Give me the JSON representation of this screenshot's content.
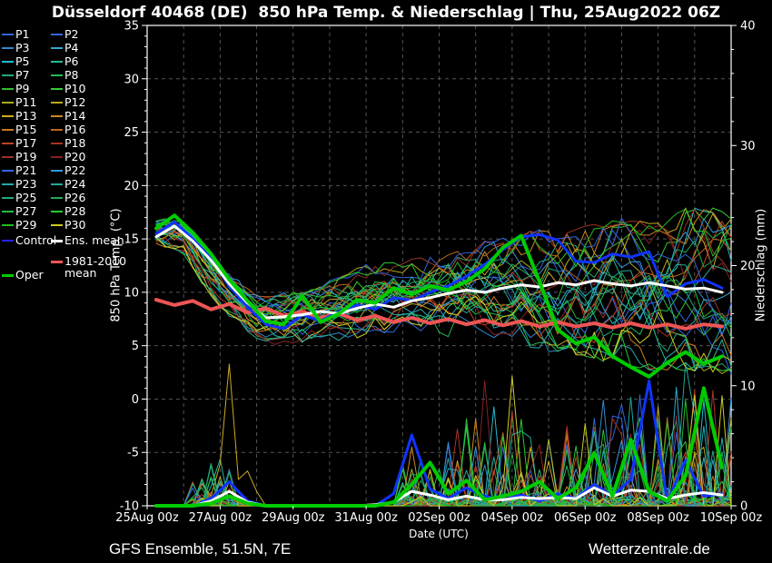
{
  "title": "Düsseldorf 40468 (DE)  850 hPa Temp. & Niederschlag | Thu, 25Aug2022 06Z",
  "footer_left": "GFS Ensemble, 51.5N, 7E",
  "footer_right": "Wetterzentrale.de",
  "axes": {
    "x": {
      "label": "Date (UTC)",
      "tick_labels": [
        "25Aug 00z",
        "27Aug 00z",
        "29Aug 00z",
        "31Aug 00z",
        "02Sep 00z",
        "04Sep 00z",
        "06Sep 00z",
        "08Sep 00z",
        "10Sep 00z"
      ],
      "tick_days": [
        0,
        2,
        4,
        6,
        8,
        10,
        12,
        14,
        16
      ],
      "range_days": [
        0,
        16
      ],
      "minor_step_days": 1
    },
    "y_left": {
      "label": "850 hPa Temp. (°C)",
      "ticks": [
        35,
        30,
        25,
        20,
        15,
        10,
        5,
        0,
        -5,
        -10
      ],
      "range": [
        -10,
        35
      ],
      "grid_step": 5,
      "minor_step": 1
    },
    "y_right": {
      "label": "Niederschlag (mm)",
      "ticks": [
        0,
        10,
        20,
        30,
        40
      ],
      "range": [
        0,
        40
      ],
      "minor_step": 2
    }
  },
  "legend": {
    "members": [
      {
        "label": "P1",
        "color": "#3366dd"
      },
      {
        "label": "P2",
        "color": "#3366dd"
      },
      {
        "label": "P3",
        "color": "#3388cc"
      },
      {
        "label": "P4",
        "color": "#33aacc"
      },
      {
        "label": "P5",
        "color": "#22bbcc"
      },
      {
        "label": "P6",
        "color": "#22bb99"
      },
      {
        "label": "P7",
        "color": "#22aa77"
      },
      {
        "label": "P8",
        "color": "#22bb55"
      },
      {
        "label": "P9",
        "color": "#33bb33"
      },
      {
        "label": "P10",
        "color": "#33cc33"
      },
      {
        "label": "P11",
        "color": "#aaaa22"
      },
      {
        "label": "P12",
        "color": "#bbaa22"
      },
      {
        "label": "P13",
        "color": "#ccaa22"
      },
      {
        "label": "P14",
        "color": "#cc8822"
      },
      {
        "label": "P15",
        "color": "#cc7722"
      },
      {
        "label": "P16",
        "color": "#bb6622"
      },
      {
        "label": "P17",
        "color": "#bb4422"
      },
      {
        "label": "P18",
        "color": "#aa3322"
      },
      {
        "label": "P19",
        "color": "#993322"
      },
      {
        "label": "P20",
        "color": "#882222"
      },
      {
        "label": "P21",
        "color": "#3366dd"
      },
      {
        "label": "P22",
        "color": "#3399dd"
      },
      {
        "label": "P23",
        "color": "#22aaaa"
      },
      {
        "label": "P24",
        "color": "#22aa99"
      },
      {
        "label": "P25",
        "color": "#22aa77"
      },
      {
        "label": "P26",
        "color": "#22aa55"
      },
      {
        "label": "P27",
        "color": "#22bb44"
      },
      {
        "label": "P28",
        "color": "#22cc33"
      },
      {
        "label": "P29",
        "color": "#22bb22"
      },
      {
        "label": "P30",
        "color": "#cccc22"
      }
    ],
    "specials": [
      {
        "label": "Control",
        "color": "#2222ff",
        "col": 1
      },
      {
        "label": "Ens. mean",
        "color": "#ffffff",
        "col": 2
      },
      {
        "label": "1981-2010 mean",
        "lines": [
          "1981-2010",
          "mean"
        ],
        "color": "#ff5555",
        "col": 2
      },
      {
        "label": "Oper",
        "color": "#00cc00",
        "col": 1
      }
    ]
  },
  "chart_data": {
    "type": "line",
    "title": "Düsseldorf 40468 (DE) 850 hPa Temp. & Niederschlag | Thu, 25Aug2022 06Z",
    "xlabel": "Date (UTC)",
    "ylabel_left": "850 hPa Temp. (°C)",
    "ylabel_right": "Niederschlag (mm)",
    "x_range_days": [
      0,
      16
    ],
    "ylim_left": [
      -10,
      35
    ],
    "ylim_right": [
      0,
      40
    ],
    "grid": true,
    "legend_position": "left",
    "x_days": [
      0.25,
      0.75,
      1.25,
      1.75,
      2.25,
      2.75,
      3.25,
      3.75,
      4.25,
      4.75,
      5.25,
      5.75,
      6.25,
      6.75,
      7.25,
      7.75,
      8.25,
      8.75,
      9.25,
      9.75,
      10.25,
      10.75,
      11.25,
      11.75,
      12.25,
      12.75,
      13.25,
      13.75,
      14.25,
      14.75,
      15.25,
      15.75
    ],
    "series": [
      {
        "name": "Ens. mean",
        "axis": "temp",
        "color": "#ffffff",
        "width": 3,
        "values": [
          15.2,
          16.2,
          14.8,
          13.0,
          10.8,
          9.0,
          7.6,
          7.7,
          7.9,
          8.2,
          8.0,
          8.5,
          8.9,
          8.6,
          9.2,
          9.5,
          9.9,
          10.2,
          10.0,
          10.4,
          10.7,
          10.5,
          10.9,
          10.7,
          11.1,
          10.8,
          10.6,
          10.9,
          10.6,
          10.3,
          10.4,
          10.0
        ]
      },
      {
        "name": "Control",
        "axis": "temp",
        "color": "#1133ff",
        "width": 3,
        "values": [
          15.5,
          16.6,
          15.0,
          13.2,
          10.6,
          8.6,
          7.0,
          6.6,
          7.9,
          7.3,
          8.2,
          8.8,
          8.4,
          9.5,
          9.2,
          10.0,
          10.6,
          11.5,
          12.6,
          14.0,
          15.2,
          15.4,
          14.9,
          12.9,
          12.8,
          13.6,
          13.3,
          13.8,
          9.6,
          10.8,
          11.2,
          10.4
        ]
      },
      {
        "name": "Oper",
        "axis": "temp",
        "color": "#00cc00",
        "width": 4,
        "values": [
          16.0,
          17.2,
          15.6,
          13.6,
          11.2,
          9.2,
          7.3,
          7.0,
          9.7,
          7.2,
          8.0,
          9.3,
          9.0,
          10.4,
          9.8,
          10.6,
          10.2,
          11.0,
          12.2,
          14.2,
          15.3,
          11.0,
          6.5,
          5.2,
          5.8,
          4.0,
          3.0,
          2.1,
          3.4,
          4.4,
          3.3,
          4.0
        ]
      },
      {
        "name": "1981-2010 mean",
        "axis": "temp",
        "color": "#ee5555",
        "width": 4,
        "values": [
          9.3,
          8.8,
          9.2,
          8.4,
          8.9,
          8.1,
          8.5,
          7.8,
          8.2,
          7.6,
          8.0,
          7.4,
          7.8,
          7.2,
          7.6,
          7.1,
          7.5,
          7.0,
          7.4,
          6.9,
          7.3,
          6.8,
          7.2,
          6.8,
          7.1,
          6.7,
          7.1,
          6.7,
          7.0,
          6.6,
          7.0,
          6.8
        ]
      },
      {
        "name": "Control precip",
        "axis": "precip",
        "color": "#1133ff",
        "width": 3,
        "values": [
          0,
          0,
          0,
          0.6,
          2.0,
          0.4,
          0,
          0,
          0,
          0,
          0,
          0,
          0,
          1.0,
          5.9,
          1.4,
          0.6,
          1.5,
          0.8,
          0.5,
          0.9,
          0.4,
          1.0,
          0.6,
          1.8,
          0.8,
          2.2,
          10.4,
          0.3,
          3.8,
          0.8,
          1.0
        ]
      },
      {
        "name": "Ens. mean precip",
        "axis": "precip",
        "color": "#ffffff",
        "width": 3,
        "values": [
          0,
          0,
          0,
          0.4,
          1.2,
          0.3,
          0,
          0,
          0,
          0,
          0,
          0,
          0.1,
          0.3,
          1.2,
          0.9,
          0.5,
          0.8,
          0.5,
          0.5,
          0.7,
          0.6,
          0.7,
          0.6,
          1.5,
          0.8,
          1.3,
          1.2,
          0.6,
          0.9,
          1.1,
          0.9
        ]
      },
      {
        "name": "Oper precip",
        "axis": "precip",
        "color": "#00cc00",
        "width": 4,
        "values": [
          0,
          0,
          0,
          0.2,
          0.8,
          0.2,
          0,
          0,
          0,
          0,
          0,
          0,
          0,
          0.3,
          1.8,
          3.6,
          1.0,
          2.1,
          0.5,
          0.8,
          1.2,
          2.0,
          0.6,
          1.5,
          4.4,
          0.8,
          5.5,
          1.2,
          0.4,
          2.5,
          9.8,
          3.2
        ]
      }
    ],
    "ensemble": {
      "count": 30,
      "seed": 42,
      "temp_envelope": {
        "x": [
          0,
          1,
          2,
          3,
          4,
          5,
          6,
          7,
          8,
          9,
          10,
          11,
          12,
          13,
          14,
          15,
          16
        ],
        "lower": [
          14.3,
          13.0,
          8.5,
          5.5,
          5.0,
          5.5,
          6.0,
          6.5,
          6.0,
          6.0,
          5.0,
          4.5,
          4.0,
          3.0,
          2.5,
          2.5,
          2.0
        ],
        "upper": [
          16.8,
          16.5,
          12.5,
          9.5,
          10.0,
          11.0,
          12.5,
          13.0,
          13.5,
          14.5,
          15.5,
          16.0,
          16.5,
          17.0,
          16.5,
          18.5,
          17.5
        ]
      },
      "precip_max": {
        "x": [
          0,
          1,
          2,
          3,
          4,
          5,
          6,
          7,
          8,
          9,
          10,
          11,
          12,
          13,
          14,
          15,
          16
        ],
        "values": [
          0,
          0,
          5,
          3,
          0,
          0,
          0,
          5,
          6,
          9,
          10,
          6,
          8,
          10,
          9,
          11,
          9
        ]
      },
      "wet_windows": [
        [
          1.2,
          2.7
        ],
        [
          6.8,
          16
        ]
      ],
      "featured_spikes": [
        {
          "member": 12,
          "points": [
            [
              1.75,
              0.8
            ],
            [
              2.0,
              3.5
            ],
            [
              2.25,
              11.8
            ],
            [
              2.5,
              2.2
            ],
            [
              2.75,
              2.9
            ],
            [
              3.0,
              1.2
            ]
          ]
        },
        {
          "member": 19,
          "points": [
            [
              9.0,
              0.8
            ],
            [
              9.25,
              10.4
            ],
            [
              9.5,
              1.2
            ]
          ]
        },
        {
          "member": 29,
          "points": [
            [
              9.75,
              1.5
            ],
            [
              10.0,
              10.8
            ],
            [
              10.25,
              2.5
            ]
          ]
        },
        {
          "member": 23,
          "points": [
            [
              14.5,
              1.5
            ],
            [
              14.75,
              11.9
            ],
            [
              15.0,
              7.5
            ],
            [
              15.25,
              1.8
            ]
          ]
        }
      ]
    }
  },
  "colors": {
    "background": "#000000",
    "frame": "#ffffff",
    "grid": "#555555",
    "text": "#ffffff"
  }
}
